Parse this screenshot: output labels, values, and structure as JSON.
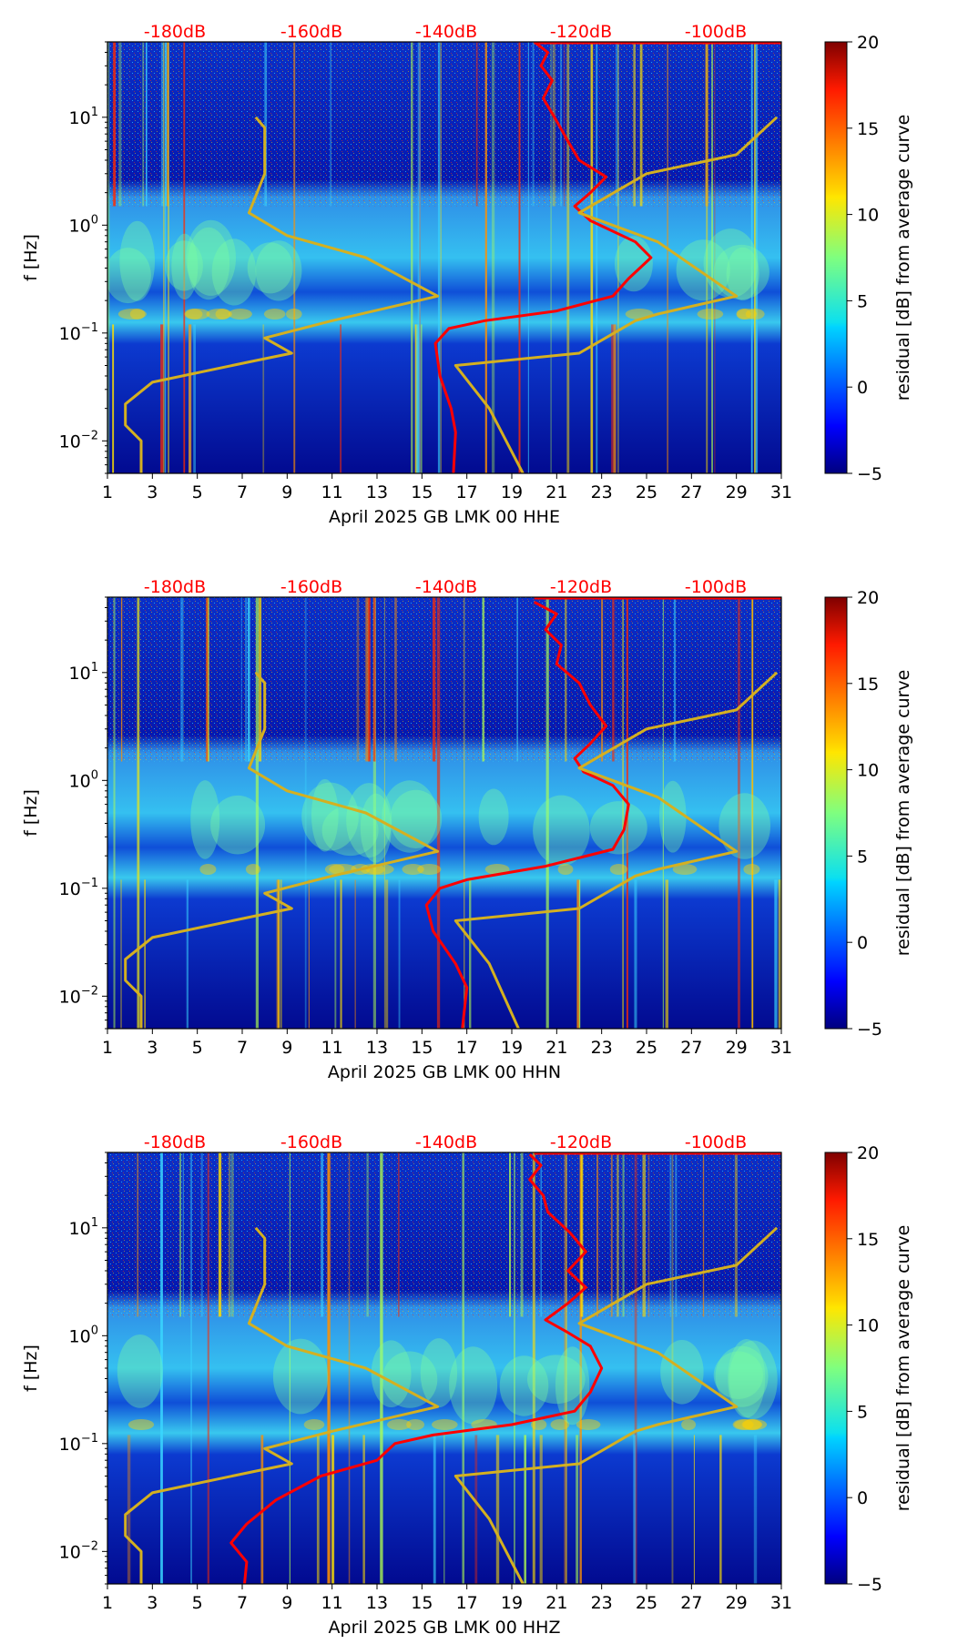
{
  "chart_data": [
    {
      "type": "heatmap",
      "xlabel": "April 2025 GB LMK 00 HHE",
      "ylabel": "f [Hz]",
      "x_ticks": [
        "1",
        "3",
        "5",
        "7",
        "9",
        "11",
        "13",
        "15",
        "17",
        "19",
        "21",
        "23",
        "25",
        "27",
        "29",
        "31"
      ],
      "x_range": [
        1,
        31
      ],
      "y_range": [
        0.005,
        50
      ],
      "y_scale": "log",
      "y_ticks": [
        0.01,
        0.1,
        1,
        10
      ],
      "top_axis_ticks": [
        "-180dB",
        "-160dB",
        "-140dB",
        "-120dB",
        "-100dB"
      ],
      "colorbar": {
        "label": "residual [dB] from average curve",
        "range": [
          -5,
          20
        ],
        "ticks": [
          "20",
          "15",
          "10",
          "5",
          "0",
          "−5"
        ]
      },
      "series": [
        {
          "color": "#ff0000",
          "points": [
            [
              20.0,
              50
            ],
            [
              20.6,
              40
            ],
            [
              20.3,
              30
            ],
            [
              20.8,
              22
            ],
            [
              20.4,
              15
            ],
            [
              20.9,
              10
            ],
            [
              21.5,
              6
            ],
            [
              22.0,
              4
            ],
            [
              23.2,
              2.8
            ],
            [
              22.5,
              2
            ],
            [
              21.8,
              1.5
            ],
            [
              22.5,
              1.1
            ],
            [
              24.5,
              0.7
            ],
            [
              25.2,
              0.5
            ],
            [
              24.2,
              0.32
            ],
            [
              23.5,
              0.22
            ],
            [
              21.0,
              0.16
            ],
            [
              17.8,
              0.13
            ],
            [
              16.2,
              0.11
            ],
            [
              15.6,
              0.08
            ],
            [
              15.8,
              0.04
            ],
            [
              16.3,
              0.02
            ],
            [
              16.5,
              0.012
            ],
            [
              16.4,
              0.005
            ]
          ]
        },
        {
          "color": "#d4b020",
          "points": [
            [
              7.6,
              10
            ],
            [
              8.0,
              8
            ],
            [
              8.0,
              3
            ],
            [
              7.3,
              1.3
            ],
            [
              9.0,
              0.8
            ],
            [
              12.5,
              0.5
            ],
            [
              15.7,
              0.22
            ],
            [
              11.0,
              0.13
            ],
            [
              8.0,
              0.09
            ],
            [
              9.2,
              0.065
            ],
            [
              7.5,
              0.055
            ],
            [
              3.0,
              0.035
            ],
            [
              1.8,
              0.022
            ],
            [
              1.8,
              0.014
            ],
            [
              2.5,
              0.01
            ],
            [
              2.5,
              0.005
            ]
          ]
        },
        {
          "color": "#d4b020",
          "points": [
            [
              30.8,
              10
            ],
            [
              29.0,
              4.5
            ],
            [
              25.0,
              3.0
            ],
            [
              22.0,
              1.3
            ],
            [
              25.5,
              0.7
            ],
            [
              29.0,
              0.22
            ],
            [
              25.5,
              0.15
            ],
            [
              24.5,
              0.13
            ],
            [
              22.0,
              0.065
            ],
            [
              16.5,
              0.05
            ],
            [
              18.0,
              0.02
            ],
            [
              19.5,
              0.005
            ]
          ]
        }
      ]
    },
    {
      "type": "heatmap",
      "xlabel": "April 2025 GB LMK 00 HHN",
      "ylabel": "f [Hz]",
      "x_ticks": [
        "1",
        "3",
        "5",
        "7",
        "9",
        "11",
        "13",
        "15",
        "17",
        "19",
        "21",
        "23",
        "25",
        "27",
        "29",
        "31"
      ],
      "x_range": [
        1,
        31
      ],
      "y_range": [
        0.005,
        50
      ],
      "y_scale": "log",
      "y_ticks": [
        0.01,
        0.1,
        1,
        10
      ],
      "top_axis_ticks": [
        "-180dB",
        "-160dB",
        "-140dB",
        "-120dB",
        "-100dB"
      ],
      "colorbar": {
        "label": "residual [dB] from average curve",
        "range": [
          -5,
          20
        ],
        "ticks": [
          "20",
          "15",
          "10",
          "5",
          "0",
          "−5"
        ]
      },
      "series": [
        {
          "color": "#ff0000",
          "points": [
            [
              20.0,
              45
            ],
            [
              21.0,
              35
            ],
            [
              20.5,
              25
            ],
            [
              21.2,
              18
            ],
            [
              21.0,
              12
            ],
            [
              22.0,
              8
            ],
            [
              22.5,
              5
            ],
            [
              23.2,
              3.2
            ],
            [
              22.5,
              2.2
            ],
            [
              21.8,
              1.6
            ],
            [
              22.2,
              1.2
            ],
            [
              23.5,
              0.9
            ],
            [
              24.2,
              0.6
            ],
            [
              24.0,
              0.35
            ],
            [
              23.5,
              0.23
            ],
            [
              20.5,
              0.16
            ],
            [
              17.0,
              0.12
            ],
            [
              15.8,
              0.1
            ],
            [
              15.2,
              0.07
            ],
            [
              15.5,
              0.04
            ],
            [
              16.5,
              0.02
            ],
            [
              17.0,
              0.012
            ],
            [
              16.8,
              0.005
            ]
          ]
        },
        {
          "color": "#d4b020",
          "points": [
            [
              7.6,
              10
            ],
            [
              8.0,
              8
            ],
            [
              8.0,
              3
            ],
            [
              7.3,
              1.3
            ],
            [
              9.0,
              0.8
            ],
            [
              12.5,
              0.5
            ],
            [
              15.7,
              0.22
            ],
            [
              11.0,
              0.13
            ],
            [
              8.0,
              0.09
            ],
            [
              9.2,
              0.065
            ],
            [
              7.5,
              0.055
            ],
            [
              3.0,
              0.035
            ],
            [
              1.8,
              0.022
            ],
            [
              1.8,
              0.014
            ],
            [
              2.5,
              0.01
            ],
            [
              2.5,
              0.005
            ]
          ]
        },
        {
          "color": "#d4b020",
          "points": [
            [
              30.8,
              10
            ],
            [
              29.0,
              4.5
            ],
            [
              25.0,
              3.0
            ],
            [
              22.0,
              1.3
            ],
            [
              25.5,
              0.7
            ],
            [
              29.0,
              0.22
            ],
            [
              25.5,
              0.15
            ],
            [
              24.5,
              0.13
            ],
            [
              22.0,
              0.065
            ],
            [
              16.5,
              0.05
            ],
            [
              18.0,
              0.02
            ],
            [
              19.3,
              0.005
            ]
          ]
        }
      ]
    },
    {
      "type": "heatmap",
      "xlabel": "April 2025 GB LMK 00 HHZ",
      "ylabel": "f [Hz]",
      "x_ticks": [
        "1",
        "3",
        "5",
        "7",
        "9",
        "11",
        "13",
        "15",
        "17",
        "19",
        "21",
        "23",
        "25",
        "27",
        "29",
        "31"
      ],
      "x_range": [
        1,
        31
      ],
      "y_range": [
        0.005,
        50
      ],
      "y_scale": "log",
      "y_ticks": [
        0.01,
        0.1,
        1,
        10
      ],
      "top_axis_ticks": [
        "-180dB",
        "-160dB",
        "-140dB",
        "-120dB",
        "-100dB"
      ],
      "colorbar": {
        "label": "residual [dB] from average curve",
        "range": [
          -5,
          20
        ],
        "ticks": [
          "20",
          "15",
          "10",
          "5",
          "0",
          "−5"
        ]
      },
      "series": [
        {
          "color": "#ff0000",
          "points": [
            [
              19.8,
              48
            ],
            [
              20.3,
              38
            ],
            [
              19.8,
              28
            ],
            [
              20.4,
              20
            ],
            [
              20.6,
              14
            ],
            [
              21.6,
              9
            ],
            [
              22.3,
              6
            ],
            [
              21.5,
              4
            ],
            [
              22.3,
              2.8
            ],
            [
              21.5,
              2
            ],
            [
              20.5,
              1.4
            ],
            [
              21.4,
              1.1
            ],
            [
              22.5,
              0.8
            ],
            [
              23.0,
              0.5
            ],
            [
              22.5,
              0.3
            ],
            [
              21.8,
              0.2
            ],
            [
              19.0,
              0.15
            ],
            [
              15.5,
              0.12
            ],
            [
              13.8,
              0.1
            ],
            [
              13.0,
              0.07
            ],
            [
              10.5,
              0.05
            ],
            [
              8.5,
              0.03
            ],
            [
              7.2,
              0.018
            ],
            [
              6.5,
              0.012
            ],
            [
              7.2,
              0.008
            ],
            [
              7.1,
              0.005
            ]
          ]
        },
        {
          "color": "#d4b020",
          "points": [
            [
              7.6,
              10
            ],
            [
              8.0,
              8
            ],
            [
              8.0,
              3
            ],
            [
              7.3,
              1.3
            ],
            [
              9.0,
              0.8
            ],
            [
              12.5,
              0.5
            ],
            [
              15.7,
              0.22
            ],
            [
              11.0,
              0.13
            ],
            [
              8.0,
              0.09
            ],
            [
              9.2,
              0.065
            ],
            [
              7.5,
              0.055
            ],
            [
              3.0,
              0.035
            ],
            [
              1.8,
              0.022
            ],
            [
              1.8,
              0.014
            ],
            [
              2.5,
              0.01
            ],
            [
              2.5,
              0.005
            ]
          ]
        },
        {
          "color": "#d4b020",
          "points": [
            [
              30.8,
              10
            ],
            [
              29.0,
              4.5
            ],
            [
              25.0,
              3.0
            ],
            [
              22.0,
              1.3
            ],
            [
              25.5,
              0.7
            ],
            [
              29.0,
              0.22
            ],
            [
              25.5,
              0.15
            ],
            [
              24.5,
              0.13
            ],
            [
              22.0,
              0.065
            ],
            [
              16.5,
              0.05
            ],
            [
              18.0,
              0.02
            ],
            [
              19.5,
              0.005
            ]
          ]
        }
      ]
    }
  ]
}
